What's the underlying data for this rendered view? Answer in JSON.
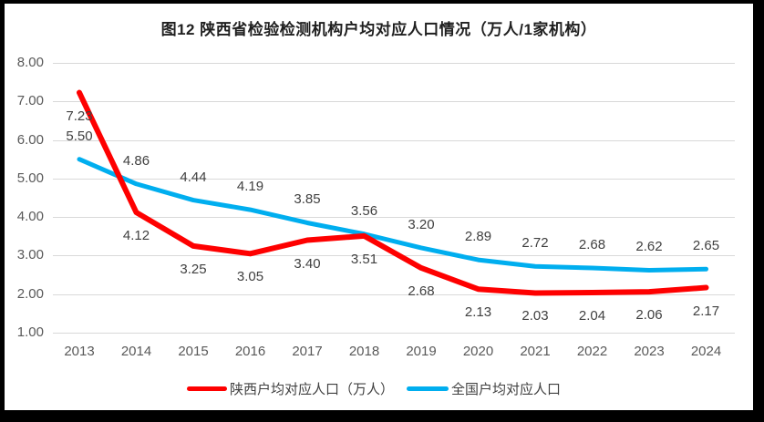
{
  "chart_data": {
    "type": "line",
    "title": "图12 陕西省检验检测机构户均对应人口情况（万人/1家机构）",
    "categories": [
      "2013",
      "2014",
      "2015",
      "2016",
      "2017",
      "2018",
      "2019",
      "2020",
      "2021",
      "2022",
      "2023",
      "2024"
    ],
    "series": [
      {
        "name": "陕西户均对应人口（万人）",
        "color": "#fe0000",
        "stroke_width": 6,
        "label_position": "below",
        "values": [
          7.23,
          4.12,
          3.25,
          3.05,
          3.4,
          3.51,
          2.68,
          2.13,
          2.03,
          2.04,
          2.06,
          2.17
        ]
      },
      {
        "name": "全国户均对应人口",
        "color": "#00aeef",
        "stroke_width": 5,
        "label_position": "above",
        "values": [
          5.5,
          4.86,
          4.44,
          4.19,
          3.85,
          3.56,
          3.2,
          2.89,
          2.72,
          2.68,
          2.62,
          2.65
        ]
      }
    ],
    "y_ticks": [
      8.0,
      7.0,
      6.0,
      5.0,
      4.0,
      3.0,
      2.0,
      1.0
    ],
    "ylim": [
      1.0,
      8.0
    ],
    "value_format_decimals": 2,
    "grid": true,
    "legend_position": "bottom"
  },
  "colors": {
    "grid": "#d9d9d9",
    "axis_text": "#595959",
    "data_label": "#404040",
    "frame_border": "#000000",
    "background": "#ffffff"
  }
}
